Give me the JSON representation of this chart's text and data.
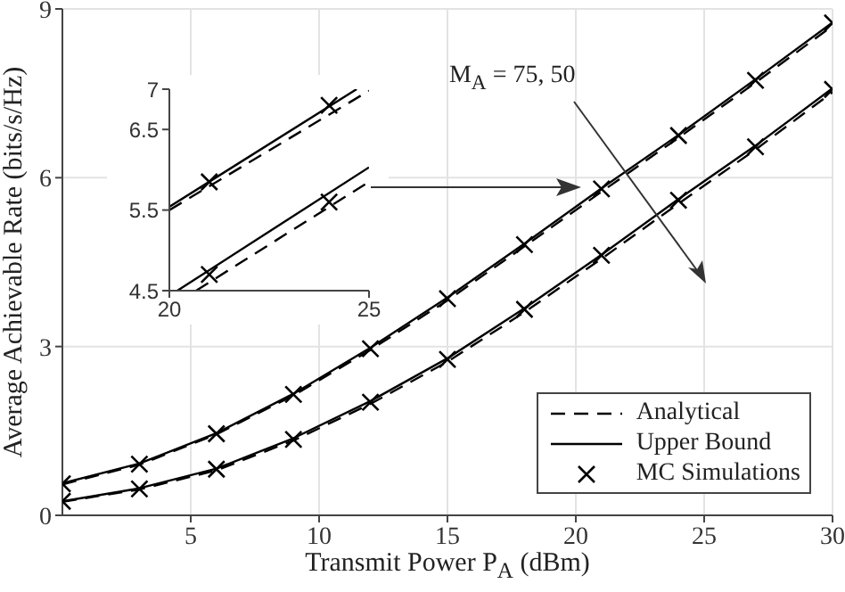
{
  "chart_data": [
    {
      "type": "line",
      "xlabel": "Transmit Power P$_{A}$ (dBm)",
      "ylabel": "Average Achievable Rate (bits/s/Hz)",
      "x": [
        0,
        3,
        6,
        9,
        12,
        15,
        18,
        21,
        24,
        27,
        30
      ],
      "xlim": [
        0,
        30
      ],
      "xticks": [
        5,
        10,
        15,
        20,
        25,
        30
      ],
      "ylim": [
        0,
        9
      ],
      "yticks": [
        0,
        3,
        6,
        9
      ],
      "grid": true,
      "legend": "bottom right",
      "annotations": [
        "M$_{A}$ = 75, 50"
      ],
      "series": [
        {
          "name": "Analytical",
          "color": "#000000",
          "line_style": "dashed",
          "marker": "none",
          "values": [
            0.55,
            0.9,
            1.44,
            2.13,
            2.94,
            3.82,
            4.78,
            5.75,
            6.71,
            7.69,
            8.7
          ]
        },
        {
          "color": "#000000",
          "line_style": "dashed",
          "marker": "none",
          "values": [
            0.24,
            0.46,
            0.8,
            1.33,
            1.98,
            2.73,
            3.61,
            4.56,
            5.54,
            6.5,
            7.52
          ]
        },
        {
          "name": "Upper Bound",
          "color": "#000000",
          "line_style": "solid",
          "marker": "none",
          "values": [
            0.57,
            0.92,
            1.46,
            2.16,
            2.98,
            3.87,
            4.83,
            5.81,
            6.76,
            7.75,
            8.76
          ]
        },
        {
          "color": "#000000",
          "line_style": "solid",
          "marker": "none",
          "values": [
            0.25,
            0.48,
            0.83,
            1.37,
            2.03,
            2.79,
            3.68,
            4.63,
            5.62,
            6.57,
            7.59
          ]
        },
        {
          "name": "MC Simulations",
          "type": "scatter",
          "color": "#000000",
          "marker": "cross",
          "values": [
            0.56,
            0.91,
            1.45,
            2.15,
            2.96,
            3.85,
            4.81,
            5.8,
            6.75,
            7.73,
            8.75
          ]
        },
        {
          "type": "scatter",
          "color": "#000000",
          "marker": "cross",
          "values": [
            0.25,
            0.47,
            0.82,
            1.35,
            2.01,
            2.77,
            3.66,
            4.62,
            5.6,
            6.55,
            7.57
          ]
        }
      ]
    },
    {
      "type": "line",
      "xlim": [
        20,
        25
      ],
      "xticks": [
        20,
        25
      ],
      "ylim": [
        4.5,
        7
      ],
      "yticks": [
        4.5,
        5.5,
        6.5,
        7
      ],
      "legend": false,
      "series": [
        {
          "color": "#000000",
          "line_style": "dashed",
          "marker": "none",
          "x": [
            20,
            25
          ],
          "values": [
            5.5,
            6.98
          ]
        },
        {
          "color": "#000000",
          "line_style": "dashed",
          "marker": "none",
          "x": [
            20.67,
            25
          ],
          "values": [
            4.5,
            5.85
          ]
        },
        {
          "color": "#000000",
          "line_style": "solid",
          "marker": "none",
          "x": [
            20,
            24.69
          ],
          "values": [
            5.54,
            7
          ]
        },
        {
          "color": "#000000",
          "line_style": "solid",
          "marker": "none",
          "x": [
            20.2,
            25
          ],
          "values": [
            4.5,
            6.03
          ]
        },
        {
          "type": "scatter",
          "color": "#000000",
          "marker": "cross",
          "x": [
            21,
            24
          ],
          "values": [
            5.85,
            6.8
          ]
        },
        {
          "type": "scatter",
          "color": "#000000",
          "marker": "cross",
          "x": [
            21,
            24
          ],
          "values": [
            4.7,
            5.6
          ]
        }
      ]
    }
  ]
}
